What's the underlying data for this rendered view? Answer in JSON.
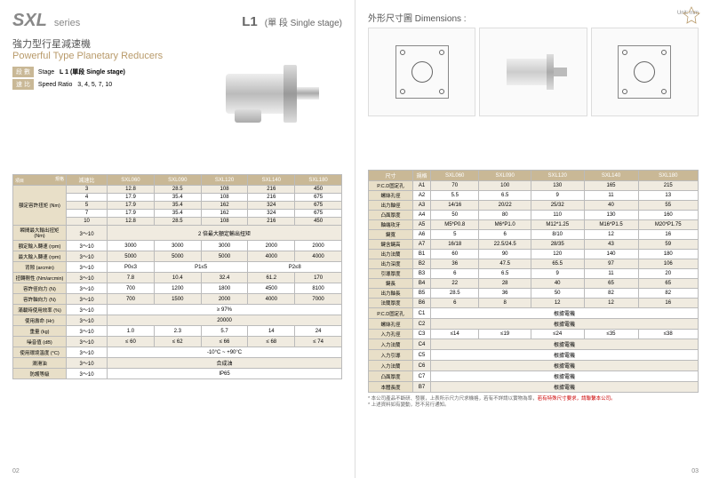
{
  "leftPage": {
    "seriesTitle": "SXL",
    "seriesSuffix": "series",
    "stageCode": "L1",
    "stageDesc": "(單 段 Single stage)",
    "subtitleCn": "強力型行星減速機",
    "subtitleEn": "Powerful Type Planetary Reducers",
    "stageRow": {
      "labelCn": "段 數",
      "labelEn": "Stage",
      "value": "L 1 (單段 Single stage)"
    },
    "ratioRow": {
      "labelCn": "速 比",
      "labelEn": "Speed Ratio",
      "value": "3, 4, 5, 7, 10"
    },
    "t1": {
      "cornerLeft": "項目",
      "cornerRight": "規格",
      "colRatio": "減速比",
      "models": [
        "SXL060",
        "SXL090",
        "SXL120",
        "SXL140",
        "SXL180"
      ],
      "rows": [
        {
          "label": "額定容許扭矩 (Nm)",
          "span": 5,
          "sub": [
            {
              "r": "3",
              "v": [
                "12.8",
                "28.5",
                "108",
                "216",
                "450"
              ]
            },
            {
              "r": "4",
              "v": [
                "17.9",
                "35.4",
                "108",
                "216",
                "675"
              ]
            },
            {
              "r": "5",
              "v": [
                "17.9",
                "35.4",
                "162",
                "324",
                "675"
              ]
            },
            {
              "r": "7",
              "v": [
                "17.9",
                "35.4",
                "162",
                "324",
                "675"
              ]
            },
            {
              "r": "10",
              "v": [
                "12.8",
                "28.5",
                "108",
                "216",
                "450"
              ]
            }
          ]
        },
        {
          "label": "瞬間最大輸出扭矩 (Nm)",
          "r": "3～10",
          "merge": "2 倍最大額定輸出扭矩"
        },
        {
          "label": "額定輸入轉速 (rpm)",
          "r": "3～10",
          "v": [
            "3000",
            "3000",
            "3000",
            "2000",
            "2000"
          ]
        },
        {
          "label": "最大輸入轉速 (rpm)",
          "r": "3～10",
          "v": [
            "5000",
            "5000",
            "5000",
            "4000",
            "4000"
          ]
        },
        {
          "label": "背隙 (arcmin)",
          "r": "3～10",
          "merge3": [
            "P0≤3",
            "P1≤5",
            "P2≤8"
          ]
        },
        {
          "label": "扭轉剛性 (Nm/arcmin)",
          "r": "3～10",
          "v": [
            "7.8",
            "10.4",
            "32.4",
            "61.2",
            "170"
          ]
        },
        {
          "label": "容許徑向力 (N)",
          "r": "3～10",
          "v": [
            "700",
            "1200",
            "1800",
            "4500",
            "8100"
          ]
        },
        {
          "label": "容許軸向力 (N)",
          "r": "3～10",
          "v": [
            "700",
            "1500",
            "2000",
            "4000",
            "7000"
          ]
        },
        {
          "label": "滿載時使用效率 (%)",
          "r": "3～10",
          "merge": "≥ 97%"
        },
        {
          "label": "使用壽命 (Hr)",
          "r": "3～10",
          "merge": "20000"
        },
        {
          "label": "重量 (kg)",
          "r": "3～10",
          "v": [
            "1.0",
            "2.3",
            "5.7",
            "14",
            "24"
          ]
        },
        {
          "label": "噪音值 (dB)",
          "r": "3～10",
          "v": [
            "≤ 60",
            "≤ 62",
            "≤ 66",
            "≤ 68",
            "≤ 74"
          ]
        },
        {
          "label": "使用環境溫度 (°C)",
          "r": "3～10",
          "merge": "-10°C ~ +90°C"
        },
        {
          "label": "潤滑油",
          "r": "3～10",
          "merge": "合成油"
        },
        {
          "label": "防護等級",
          "r": "3～10",
          "merge": "IP65"
        }
      ]
    },
    "pageNum": "02"
  },
  "rightPage": {
    "dimTitleCn": "外形尺寸圖",
    "dimTitleEn": "Dimensions :",
    "unit": "Unit: mm",
    "t2": {
      "colDim": "尺寸",
      "colSpec": "規格",
      "models": [
        "SXL060",
        "SXL090",
        "SXL120",
        "SXL140",
        "SXL180"
      ],
      "rows": [
        {
          "l": "P.C.D固定孔",
          "c": "A1",
          "v": [
            "70",
            "100",
            "130",
            "165",
            "215"
          ]
        },
        {
          "l": "螺絲孔徑",
          "c": "A2",
          "v": [
            "5.5",
            "6.5",
            "9",
            "11",
            "13"
          ]
        },
        {
          "l": "出力軸徑",
          "c": "A3",
          "v": [
            "14/16",
            "20/22",
            "25/32",
            "40",
            "55"
          ]
        },
        {
          "l": "凸面厚度",
          "c": "A4",
          "v": [
            "50",
            "80",
            "110",
            "130",
            "160"
          ]
        },
        {
          "l": "軸端攻牙",
          "c": "A5",
          "v": [
            "M5*P0.8",
            "M6*P1.0",
            "M12*1.25",
            "M16*P1.5",
            "M20*P1.75"
          ]
        },
        {
          "l": "鍵寬",
          "c": "A6",
          "v": [
            "5",
            "6",
            "8/10",
            "12",
            "16"
          ]
        },
        {
          "l": "鍵含鍵高",
          "c": "A7",
          "v": [
            "16/18",
            "22.5/24.5",
            "28/35",
            "43",
            "59"
          ]
        },
        {
          "l": "出力法蘭",
          "c": "B1",
          "v": [
            "60",
            "90",
            "120",
            "140",
            "180"
          ]
        },
        {
          "l": "出力深度",
          "c": "B2",
          "v": [
            "36",
            "47.5",
            "65.5",
            "97",
            "106"
          ]
        },
        {
          "l": "引導厚度",
          "c": "B3",
          "v": [
            "6",
            "6.5",
            "9",
            "11",
            "20"
          ]
        },
        {
          "l": "鍵長",
          "c": "B4",
          "v": [
            "22",
            "28",
            "40",
            "65",
            "65"
          ]
        },
        {
          "l": "出力軸長",
          "c": "B5",
          "v": [
            "28.5",
            "36",
            "50",
            "82",
            "82"
          ]
        },
        {
          "l": "法蘭厚度",
          "c": "B6",
          "v": [
            "6",
            "8",
            "12",
            "12",
            "16"
          ]
        },
        {
          "l": "P.C.D固定孔",
          "c": "C1",
          "merge": "根據電機"
        },
        {
          "l": "螺絲孔徑",
          "c": "C2",
          "merge": "根據電機"
        },
        {
          "l": "入力孔徑",
          "c": "C3",
          "v": [
            "≤14",
            "≤19",
            "≤24",
            "≤35",
            "≤38"
          ]
        },
        {
          "l": "入力法蘭",
          "c": "C4",
          "merge": "根據電機"
        },
        {
          "l": "入力引導",
          "c": "C5",
          "merge": "根據電機"
        },
        {
          "l": "入力法蘭",
          "c": "C6",
          "merge": "根據電機"
        },
        {
          "l": "凸面厚度",
          "c": "C7",
          "merge": "根據電機"
        },
        {
          "l": "本體長度",
          "c": "B7",
          "merge": "根據電機"
        }
      ]
    },
    "footnote1": "* 本公司產品不斷研、發展，上表所示尺力尺求機格，若有不詳請以實物為準，",
    "footnote2": "若有特殊尺寸要求，請聯繫本公司。",
    "footnote3": "* 上述資料如有變動，恕不另行通知。",
    "pageNum": "03"
  },
  "colors": {
    "headerBeige": "#c9b896",
    "rowAlt": "#f0ebe0",
    "labelBg": "#e8dfc8",
    "accentGold": "#b89a6a"
  }
}
